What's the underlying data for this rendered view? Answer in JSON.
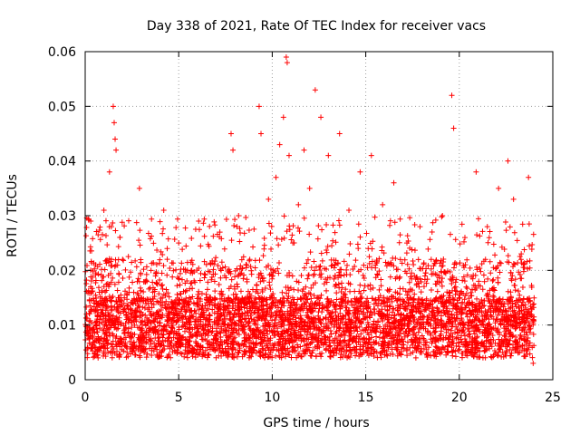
{
  "chart_data": {
    "type": "scatter",
    "title": "Day 338 of 2021, Rate Of TEC Index for receiver vacs",
    "xlabel": "GPS time / hours",
    "ylabel": "ROTI / TECUs",
    "xlim": [
      0,
      25
    ],
    "ylim": [
      0,
      0.06
    ],
    "x_ticks": [
      0,
      5,
      10,
      15,
      20,
      25
    ],
    "x_tick_labels": [
      "0",
      "5",
      "10",
      "15",
      "20",
      "25"
    ],
    "y_ticks": [
      0,
      0.01,
      0.02,
      0.03,
      0.04,
      0.05,
      0.06
    ],
    "y_tick_labels": [
      "0",
      "0.01",
      "0.02",
      "0.03",
      "0.04",
      "0.05",
      "0.06"
    ],
    "grid": true,
    "marker": "+",
    "marker_color": "#ff0000",
    "series": [
      {
        "name": "vacs",
        "x": [
          0.1,
          0.3,
          0.6,
          1.0,
          1.3,
          1.5,
          1.55,
          1.6,
          1.65,
          1.4,
          2.0,
          2.5,
          2.9,
          3.3,
          4.2,
          5.0,
          5.7,
          6.5,
          7.2,
          7.8,
          7.9,
          8.2,
          8.8,
          9.3,
          9.4,
          9.8,
          10.2,
          10.4,
          10.6,
          10.75,
          10.8,
          10.9,
          11.1,
          11.4,
          11.7,
          12.0,
          12.3,
          12.6,
          13.0,
          13.6,
          14.1,
          14.7,
          15.3,
          15.9,
          16.5,
          17.2,
          17.9,
          18.5,
          19.1,
          19.6,
          19.7,
          20.3,
          20.9,
          21.5,
          22.1,
          22.6,
          22.9,
          23.3,
          23.7,
          23.95
        ],
        "y": [
          0.009,
          0.029,
          0.014,
          0.031,
          0.038,
          0.05,
          0.047,
          0.044,
          0.042,
          0.028,
          0.022,
          0.012,
          0.035,
          0.018,
          0.031,
          0.025,
          0.02,
          0.015,
          0.027,
          0.045,
          0.042,
          0.03,
          0.022,
          0.05,
          0.045,
          0.033,
          0.037,
          0.043,
          0.048,
          0.059,
          0.058,
          0.041,
          0.025,
          0.032,
          0.042,
          0.035,
          0.053,
          0.048,
          0.041,
          0.045,
          0.031,
          0.038,
          0.041,
          0.032,
          0.036,
          0.025,
          0.028,
          0.022,
          0.03,
          0.052,
          0.046,
          0.026,
          0.038,
          0.028,
          0.035,
          0.04,
          0.033,
          0.022,
          0.037,
          0.003
        ]
      }
    ]
  }
}
